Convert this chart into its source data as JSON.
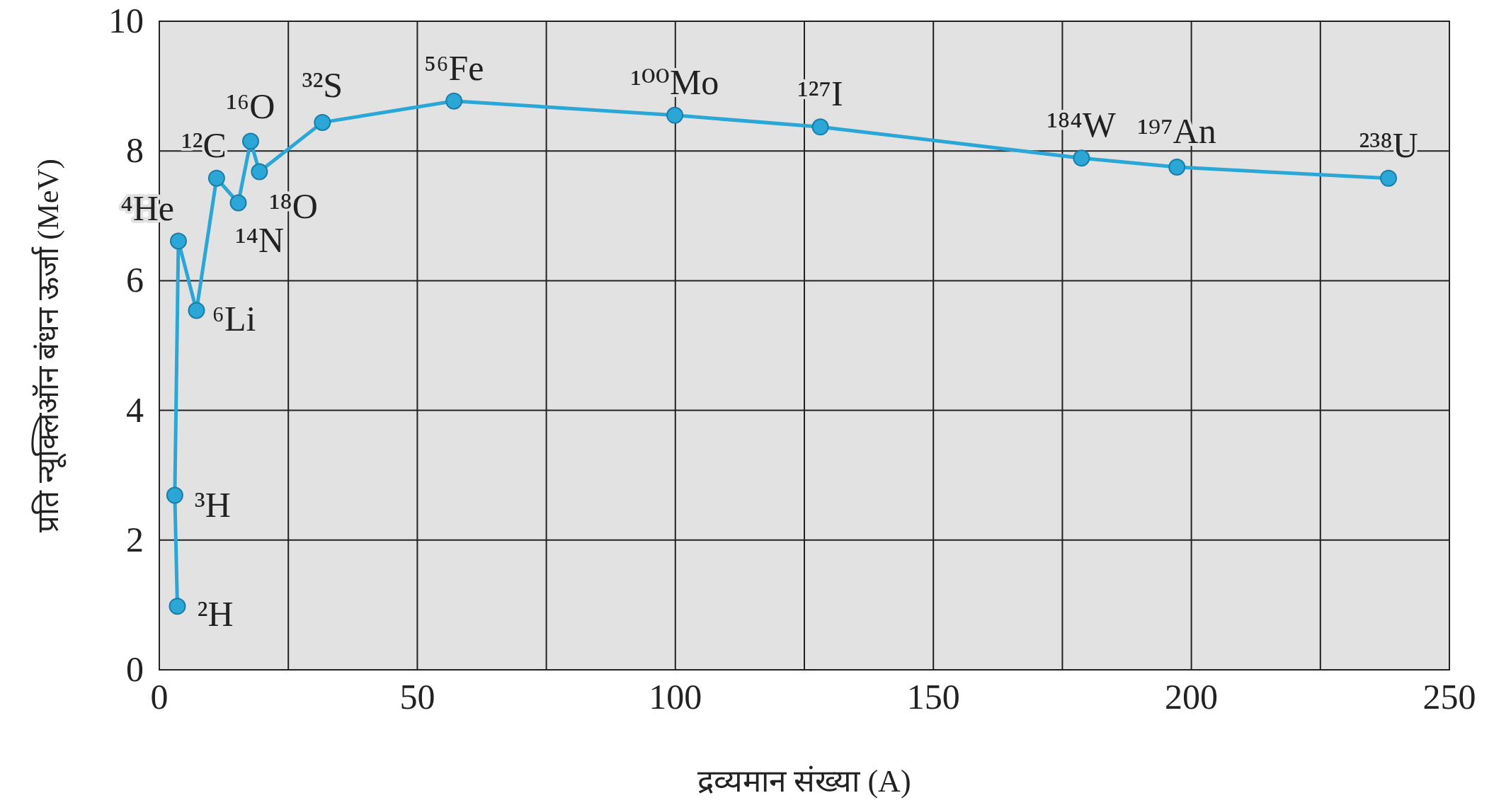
{
  "chart_data": {
    "type": "line",
    "xlabel": "द्रव्यमान संख्या (A)",
    "ylabel": "प्रति न्यूक्लिऑन बंधन ऊर्जा (MeV)",
    "series": [
      {
        "color": "#2aa7d6",
        "x": [
          3.5,
          3.0,
          3.7,
          7.2,
          11.1,
          15.3,
          17.7,
          19.4,
          31.6,
          57.1,
          99.9,
          128.1,
          178.7,
          197.2,
          238.2
        ],
        "values": [
          0.98,
          2.69,
          6.61,
          5.54,
          7.58,
          7.2,
          8.15,
          7.68,
          8.44,
          8.77,
          8.55,
          8.37,
          7.89,
          7.75,
          7.58
        ]
      }
    ],
    "annotations": [
      {
        "text": "²H",
        "x": 3.5,
        "y": 0.98
      },
      {
        "text": "³H",
        "x": 3.0,
        "y": 2.69
      },
      {
        "text": "⁴He",
        "x": 3.7,
        "y": 6.61
      },
      {
        "text": "⁶Li",
        "x": 7.2,
        "y": 5.54
      },
      {
        "text": "¹²C",
        "x": 11.1,
        "y": 7.58
      },
      {
        "text": "¹⁴N",
        "x": 15.3,
        "y": 7.2
      },
      {
        "text": "¹⁶O",
        "x": 17.7,
        "y": 8.15
      },
      {
        "text": "¹⁸O",
        "x": 19.4,
        "y": 7.68
      },
      {
        "text": "³²S",
        "x": 31.6,
        "y": 8.44
      },
      {
        "text": "⁵⁶Fe",
        "x": 57.1,
        "y": 8.77
      },
      {
        "text": "¹⁰⁰Mo",
        "x": 99.9,
        "y": 8.55
      },
      {
        "text": "¹²⁷I",
        "x": 128.1,
        "y": 8.37
      },
      {
        "text": "¹⁸⁴W",
        "x": 178.7,
        "y": 7.89
      },
      {
        "text": "¹⁹⁷An",
        "x": 197.2,
        "y": 7.75
      },
      {
        "text": "²³⁸U",
        "x": 238.2,
        "y": 7.58
      }
    ],
    "xlim": [
      0,
      250
    ],
    "ylim": [
      0,
      10
    ],
    "xticks": [
      0,
      {
        "value": 25,
        "label": null
      },
      50,
      {
        "value": 75,
        "label": null
      },
      100,
      {
        "value": 125,
        "label": null
      },
      150,
      {
        "value": 175,
        "label": null
      },
      200,
      {
        "value": 225,
        "label": null
      },
      250
    ],
    "yticks": [
      0,
      2,
      4,
      6,
      8,
      10
    ],
    "grid": true,
    "marker": "circle",
    "line_style": "solid"
  }
}
